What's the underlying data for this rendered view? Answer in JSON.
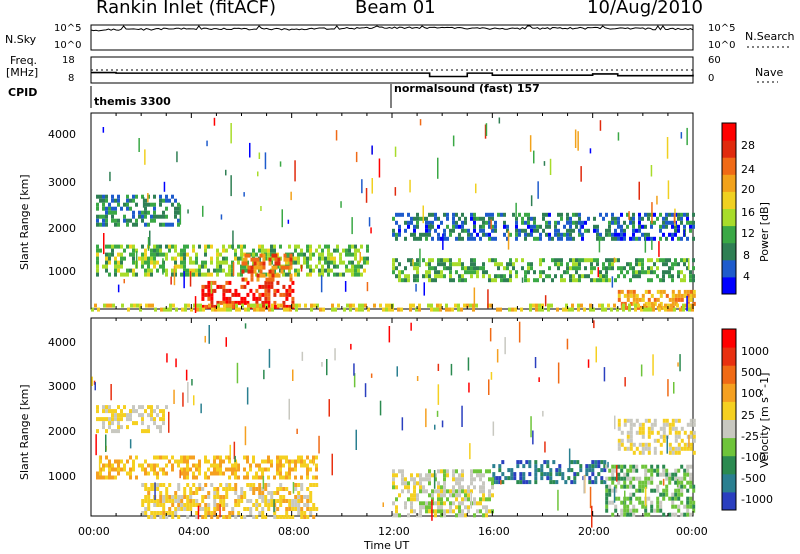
{
  "header": {
    "station": "Rankin Inlet (fitACF)",
    "beam": "Beam 01",
    "date": "10/Aug/2010"
  },
  "panels": {
    "nsky": {
      "label": "N.Sky",
      "ticks_left": [
        "10^5",
        "10^0"
      ],
      "ticks_right": [
        "10^5",
        "10^0"
      ],
      "right_label": "N.Search"
    },
    "freq": {
      "label_line1": "Freq.",
      "label_line2": "[MHz]",
      "ticks_left": [
        "18",
        "8"
      ],
      "ticks_right": [
        "60",
        "0"
      ],
      "right_label": "Nave"
    },
    "cpid": {
      "label": "CPID",
      "modes": [
        "themis 3300",
        "normalsound (fast) 157"
      ]
    }
  },
  "axes": {
    "ylabel": "Slant Range [km]",
    "yticks": [
      "4000",
      "3000",
      "2000",
      "1000"
    ],
    "xticks": [
      "00:00",
      "04:00",
      "08:00",
      "12:00",
      "16:00",
      "20:00",
      "00:00"
    ],
    "xlabel": "Time UT"
  },
  "colorbars": {
    "power": {
      "title": "Power [dB]",
      "ticks": [
        "28",
        "24",
        "20",
        "16",
        "12",
        "8",
        "4"
      ],
      "colors": [
        "#0000ff",
        "#1e5bcc",
        "#2f7f54",
        "#3aa845",
        "#a8dc2a",
        "#f0d020",
        "#f2a21b",
        "#f06a16",
        "#e02a0d",
        "#ff0000"
      ]
    },
    "velocity": {
      "title": "Velocity [m s^-1]",
      "ticks": [
        "1000",
        "500",
        "100",
        "25",
        "-25",
        "-100",
        "-500",
        "-1000"
      ],
      "colors": [
        "#2a3fbf",
        "#2a7f90",
        "#2b8a50",
        "#6ec43a",
        "#c8c8c0",
        "#f5d020",
        "#f5a020",
        "#f06a15",
        "#e83010",
        "#ff0000"
      ]
    }
  },
  "chart_data": [
    {
      "type": "line",
      "title": "N.Sky",
      "x": [
        "00:00",
        "04:00",
        "08:00",
        "12:00",
        "16:00",
        "20:00",
        "00:00"
      ],
      "series": [
        {
          "name": "N.Sky",
          "values": [
            10000,
            20000,
            15000,
            30000,
            20000,
            25000,
            15000
          ]
        }
      ],
      "ylim": [
        1,
        100000
      ],
      "yscale": "log"
    },
    {
      "type": "line",
      "title": "Freq.",
      "x": [
        "00:00",
        "01:00",
        "12:00",
        "13:30",
        "15:00",
        "16:00",
        "20:00",
        "21:00",
        "24:00"
      ],
      "series": [
        {
          "name": "Freq.",
          "values": [
            12,
            11.8,
            11.8,
            10.5,
            11.8,
            11,
            11.5,
            10.8,
            11.2
          ]
        }
      ],
      "ylim": [
        8,
        18
      ]
    },
    {
      "type": "heatmap",
      "title": "Power [dB]",
      "xlabel": "Time UT",
      "ylabel": "Slant Range [km]",
      "xlim": [
        "00:00",
        "24:00"
      ],
      "ylim": [
        180,
        4500
      ],
      "clim": [
        0,
        30
      ],
      "regions": [
        {
          "t": [
            0.2,
            11.0
          ],
          "r": [
            900,
            1600
          ],
          "v": 12
        },
        {
          "t": [
            4.4,
            8.0
          ],
          "r": [
            200,
            800
          ],
          "v": 27
        },
        {
          "t": [
            6.0,
            8.0
          ],
          "r": [
            800,
            1400
          ],
          "v": 22
        },
        {
          "t": [
            0.2,
            3.5
          ],
          "r": [
            2000,
            2700
          ],
          "v": 8
        },
        {
          "t": [
            12.0,
            24.0
          ],
          "r": [
            800,
            1300
          ],
          "v": 10
        },
        {
          "t": [
            21.0,
            24.0
          ],
          "r": [
            200,
            600
          ],
          "v": 20
        },
        {
          "t": [
            12.0,
            24.0
          ],
          "r": [
            1700,
            2300
          ],
          "v": 6
        },
        {
          "t": [
            0.0,
            24.0
          ],
          "r": [
            180,
            300
          ],
          "v": 16
        }
      ]
    },
    {
      "type": "heatmap",
      "title": "Velocity [m s^-1]",
      "xlabel": "Time UT",
      "ylabel": "Slant Range [km]",
      "xlim": [
        "00:00",
        "24:00"
      ],
      "ylim": [
        180,
        4500
      ],
      "clim": [
        -1000,
        1000
      ],
      "regions": [
        {
          "t": [
            0.2,
            9.0
          ],
          "r": [
            1000,
            1500
          ],
          "v": 200
        },
        {
          "t": [
            2.0,
            9.0
          ],
          "r": [
            200,
            900
          ],
          "v": 80
        },
        {
          "t": [
            0.2,
            3.0
          ],
          "r": [
            2000,
            2600
          ],
          "v": 0
        },
        {
          "t": [
            16.0,
            20.5
          ],
          "r": [
            900,
            1400
          ],
          "v": -700
        },
        {
          "t": [
            20.5,
            24.0
          ],
          "r": [
            200,
            1300
          ],
          "v": -300
        },
        {
          "t": [
            12.0,
            16.0
          ],
          "r": [
            200,
            1200
          ],
          "v": -100
        },
        {
          "t": [
            21.0,
            24.0
          ],
          "r": [
            1600,
            2300
          ],
          "v": 0
        }
      ]
    }
  ]
}
